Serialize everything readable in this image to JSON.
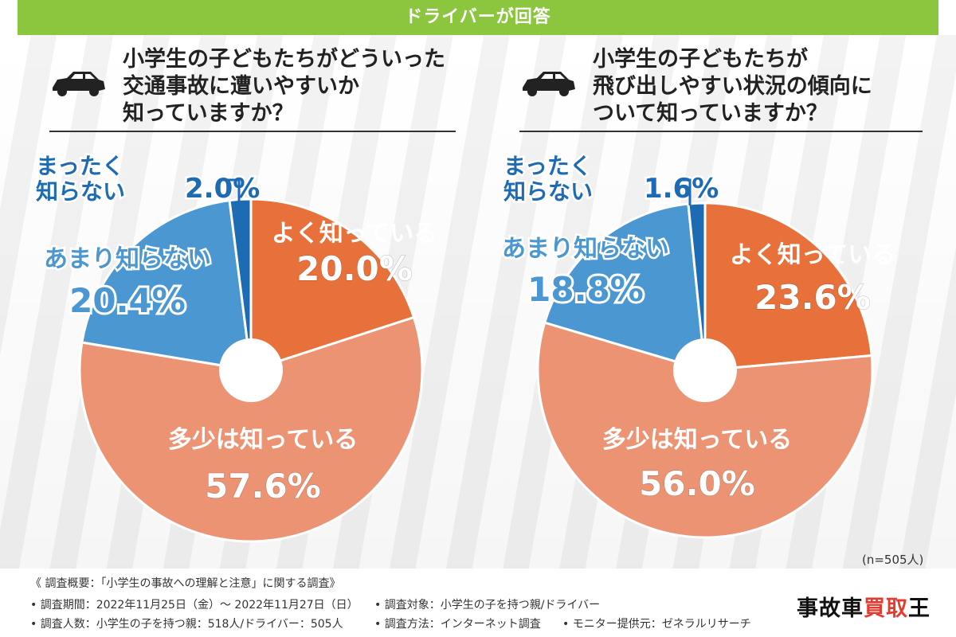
{
  "header": {
    "title": "ドライバーが回答"
  },
  "sample_size": "(n=505人)",
  "icons": {
    "car": "car-icon"
  },
  "colors": {
    "header_green": "#8cc63f",
    "orange": "#e8703a",
    "light_orange": "#ec9373",
    "light_blue": "#4a97d2",
    "dark_blue": "#1c6bb3"
  },
  "chart_data": [
    {
      "type": "pie",
      "title_lines": [
        "小学生の子どもたちがどういった",
        "交通事故に遭いやすいか",
        "知っていますか？"
      ],
      "slices": [
        {
          "label": "よく知っている",
          "value": 20.0,
          "value_label": "20.0%",
          "color": "#e8703a"
        },
        {
          "label": "多少は知っている",
          "value": 57.6,
          "value_label": "57.6%",
          "color": "#ec9373"
        },
        {
          "label": "あまり知らない",
          "value": 20.4,
          "value_label": "20.4%",
          "color": "#4a97d2"
        },
        {
          "label_lines": [
            "まったく",
            "知らない"
          ],
          "value": 2.0,
          "value_label": "2.0%",
          "color": "#1c6bb3"
        }
      ]
    },
    {
      "type": "pie",
      "title_lines": [
        "小学生の子どもたちが",
        "飛び出しやすい状況の傾向に",
        "ついて知っていますか？"
      ],
      "slices": [
        {
          "label": "よく知っている",
          "value": 23.6,
          "value_label": "23.6%",
          "color": "#e8703a"
        },
        {
          "label": "多少は知っている",
          "value": 56.0,
          "value_label": "56.0%",
          "color": "#ec9373"
        },
        {
          "label": "あまり知らない",
          "value": 18.8,
          "value_label": "18.8%",
          "color": "#4a97d2"
        },
        {
          "label_lines": [
            "まったく",
            "知らない"
          ],
          "value": 1.6,
          "value_label": "1.6%",
          "color": "#1c6bb3"
        }
      ]
    }
  ],
  "footer": {
    "summary": "《 調査概要：「小学生の事故への理解と注意」に関する調査》",
    "period": "• 調査期間：2022年11月25日（金）～ 2022年11月27日（日）",
    "target": "• 調査対象：小学生の子を持つ親/ドライバー",
    "count": "• 調査人数：小学生の子を持つ親：518人/ドライバー：505人",
    "method": "• 調査方法：インターネット調査",
    "provider": "• モニター提供元：ゼネラルリサーチ"
  },
  "logo": {
    "part1": "事故車",
    "part2": "買取",
    "part3": "王"
  }
}
